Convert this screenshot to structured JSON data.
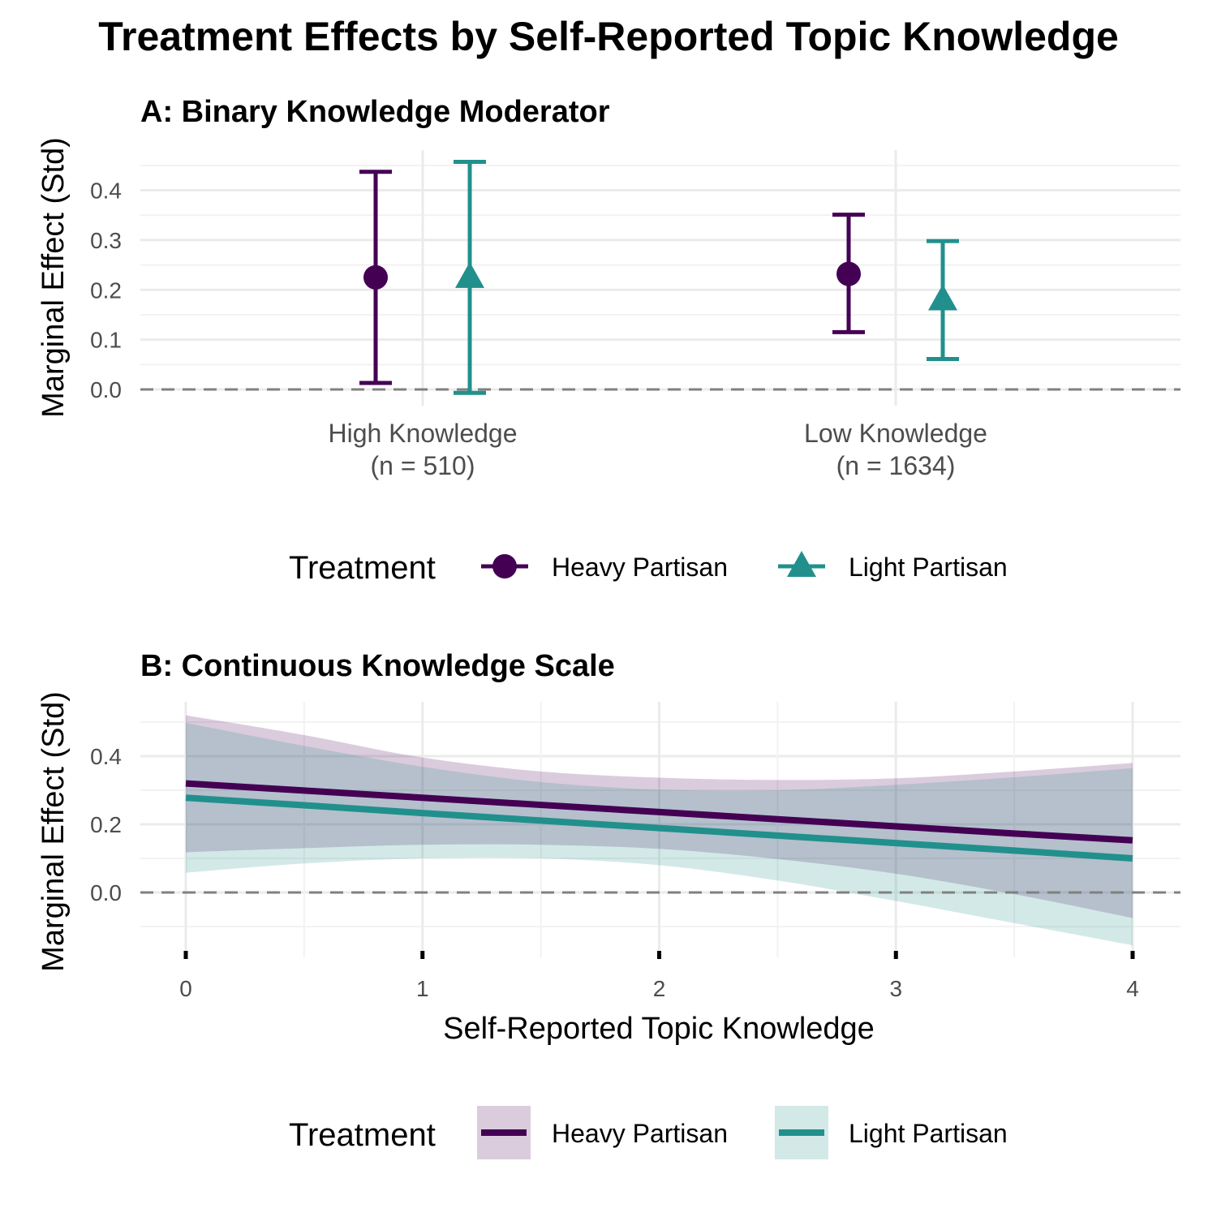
{
  "title": "Treatment Effects by Self-Reported Topic Knowledge",
  "colors": {
    "heavy": "#440154",
    "light": "#21908C"
  },
  "chart_data": [
    {
      "type": "errorbar",
      "title": "A: Binary Knowledge Moderator",
      "ylabel": "Marginal Effect (Std)",
      "ylim": [
        -0.01,
        0.47
      ],
      "yticks": [
        "0.0",
        "0.1",
        "0.2",
        "0.3",
        "0.4"
      ],
      "categories": [
        {
          "line1": "High Knowledge",
          "line2": "(n = 510)"
        },
        {
          "line1": "Low Knowledge",
          "line2": "(n = 1634)"
        }
      ],
      "series": [
        {
          "name": "Heavy Partisan",
          "shape": "circle",
          "estimates": [
            0.225,
            0.232
          ],
          "lower": [
            0.013,
            0.115
          ],
          "upper": [
            0.437,
            0.351
          ]
        },
        {
          "name": "Light Partisan",
          "shape": "triangle",
          "estimates": [
            0.225,
            0.18
          ],
          "lower": [
            -0.007,
            0.061
          ],
          "upper": [
            0.457,
            0.298
          ]
        }
      ],
      "reference_line": 0,
      "legend": {
        "title": "Treatment",
        "entries": [
          "Heavy Partisan",
          "Light Partisan"
        ]
      }
    },
    {
      "type": "area",
      "title": "B: Continuous Knowledge Scale",
      "xlabel": "Self-Reported Topic Knowledge",
      "ylabel": "Marginal Effect (Std)",
      "xlim": [
        -0.2,
        4.2
      ],
      "ylim": [
        -0.17,
        0.53
      ],
      "xticks": [
        "0",
        "1",
        "2",
        "3",
        "4"
      ],
      "yticks": [
        "0.0",
        "0.2",
        "0.4"
      ],
      "x": [
        0,
        0.5,
        1,
        1.5,
        2,
        2.5,
        3,
        3.5,
        4
      ],
      "series": [
        {
          "name": "Heavy Partisan",
          "fit": [
            0.32,
            0.299,
            0.278,
            0.257,
            0.236,
            0.215,
            0.194,
            0.173,
            0.153
          ],
          "lower": [
            0.118,
            0.13,
            0.14,
            0.14,
            0.128,
            0.098,
            0.055,
            -0.005,
            -0.075
          ],
          "upper": [
            0.52,
            0.462,
            0.396,
            0.355,
            0.337,
            0.33,
            0.335,
            0.355,
            0.38
          ]
        },
        {
          "name": "Light Partisan",
          "fit": [
            0.278,
            0.256,
            0.233,
            0.211,
            0.189,
            0.167,
            0.145,
            0.123,
            0.1
          ],
          "lower": [
            0.058,
            0.085,
            0.1,
            0.1,
            0.08,
            0.035,
            -0.025,
            -0.09,
            -0.155
          ],
          "upper": [
            0.498,
            0.43,
            0.369,
            0.324,
            0.302,
            0.3,
            0.316,
            0.338,
            0.365
          ]
        }
      ],
      "reference_line": 0,
      "legend": {
        "title": "Treatment",
        "entries": [
          "Heavy Partisan",
          "Light Partisan"
        ]
      }
    }
  ]
}
